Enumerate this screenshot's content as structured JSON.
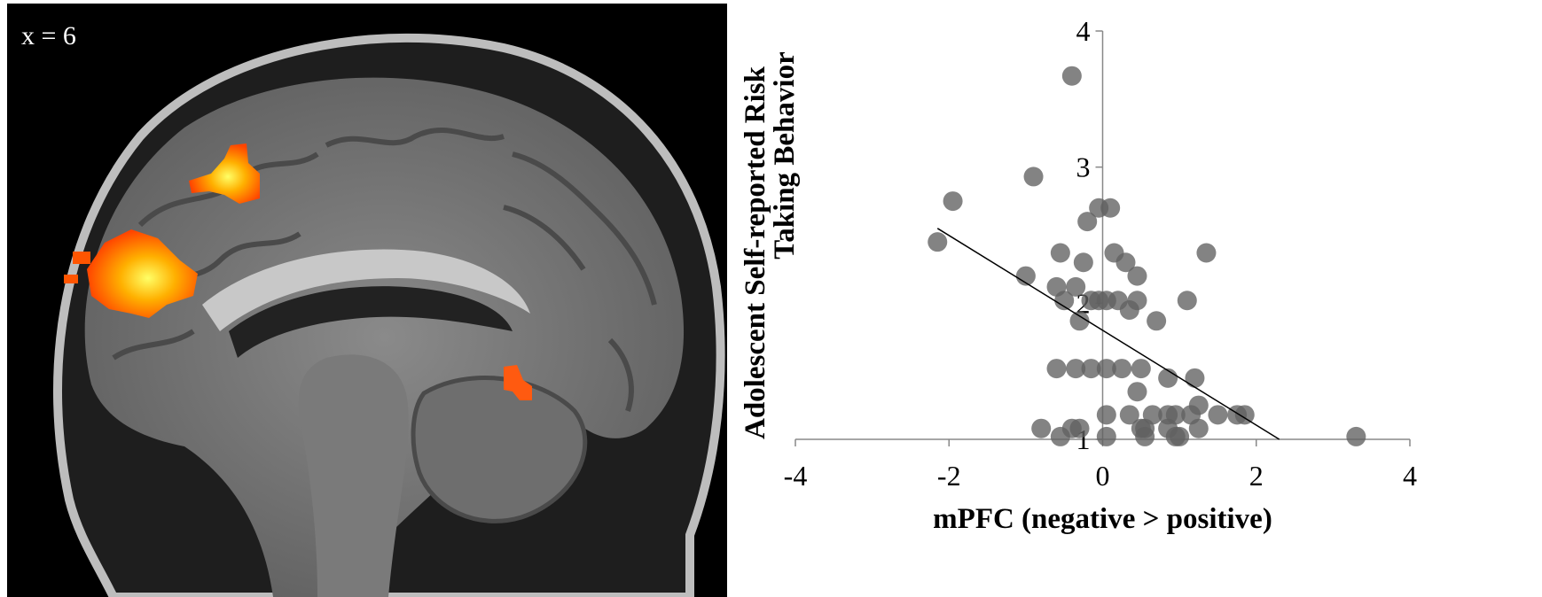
{
  "brain": {
    "slice_label": "x = 6",
    "colors": {
      "background": "#000000",
      "activation_low": "#ff4400",
      "activation_high": "#ffff66"
    }
  },
  "chart_data": {
    "type": "scatter",
    "title": "",
    "xlabel": "mPFC (negative > positive)",
    "ylabel_lines": [
      "Adolescent Self-reported Risk",
      "Taking Behavior"
    ],
    "xlim": [
      -4,
      4
    ],
    "ylim": [
      1,
      4
    ],
    "x_ticks": [
      -4,
      -2,
      0,
      2,
      4
    ],
    "y_ticks": [
      1,
      2,
      3,
      4
    ],
    "grid": false,
    "point_color": "#606060",
    "points": [
      {
        "x": -0.4,
        "y": 3.67
      },
      {
        "x": -0.9,
        "y": 2.93
      },
      {
        "x": -1.95,
        "y": 2.75
      },
      {
        "x": -2.15,
        "y": 2.45
      },
      {
        "x": -0.2,
        "y": 2.6
      },
      {
        "x": -0.05,
        "y": 2.7
      },
      {
        "x": 0.1,
        "y": 2.7
      },
      {
        "x": -0.55,
        "y": 2.37
      },
      {
        "x": 0.15,
        "y": 2.37
      },
      {
        "x": 1.35,
        "y": 2.37
      },
      {
        "x": -0.25,
        "y": 2.3
      },
      {
        "x": 0.3,
        "y": 2.3
      },
      {
        "x": -1.0,
        "y": 2.2
      },
      {
        "x": 0.45,
        "y": 2.2
      },
      {
        "x": -0.6,
        "y": 2.12
      },
      {
        "x": -0.35,
        "y": 2.12
      },
      {
        "x": -0.5,
        "y": 2.02
      },
      {
        "x": -0.15,
        "y": 2.02
      },
      {
        "x": -0.05,
        "y": 2.02
      },
      {
        "x": 0.05,
        "y": 2.02
      },
      {
        "x": 0.2,
        "y": 2.02
      },
      {
        "x": 0.45,
        "y": 2.02
      },
      {
        "x": 1.1,
        "y": 2.02
      },
      {
        "x": 0.35,
        "y": 1.95
      },
      {
        "x": -0.3,
        "y": 1.87
      },
      {
        "x": 0.7,
        "y": 1.87
      },
      {
        "x": -0.6,
        "y": 1.52
      },
      {
        "x": -0.35,
        "y": 1.52
      },
      {
        "x": -0.15,
        "y": 1.52
      },
      {
        "x": 0.05,
        "y": 1.52
      },
      {
        "x": 0.25,
        "y": 1.52
      },
      {
        "x": 0.5,
        "y": 1.52
      },
      {
        "x": 0.85,
        "y": 1.45
      },
      {
        "x": 1.2,
        "y": 1.45
      },
      {
        "x": 0.45,
        "y": 1.35
      },
      {
        "x": 1.25,
        "y": 1.25
      },
      {
        "x": 0.05,
        "y": 1.18
      },
      {
        "x": 0.35,
        "y": 1.18
      },
      {
        "x": 0.65,
        "y": 1.18
      },
      {
        "x": 0.85,
        "y": 1.18
      },
      {
        "x": 0.95,
        "y": 1.18
      },
      {
        "x": 1.15,
        "y": 1.18
      },
      {
        "x": 1.5,
        "y": 1.18
      },
      {
        "x": 1.75,
        "y": 1.18
      },
      {
        "x": 1.85,
        "y": 1.18
      },
      {
        "x": -0.8,
        "y": 1.08
      },
      {
        "x": -0.4,
        "y": 1.08
      },
      {
        "x": -0.3,
        "y": 1.08
      },
      {
        "x": 0.5,
        "y": 1.08
      },
      {
        "x": 0.55,
        "y": 1.08
      },
      {
        "x": 0.85,
        "y": 1.08
      },
      {
        "x": 1.25,
        "y": 1.08
      },
      {
        "x": -0.55,
        "y": 1.02
      },
      {
        "x": 0.05,
        "y": 1.02
      },
      {
        "x": 0.55,
        "y": 1.02
      },
      {
        "x": 0.95,
        "y": 1.02
      },
      {
        "x": 1.0,
        "y": 1.02
      },
      {
        "x": 3.3,
        "y": 1.02
      }
    ],
    "trendline": {
      "x1": -2.15,
      "y1": 2.55,
      "x2": 2.3,
      "y2": 1.0
    }
  }
}
